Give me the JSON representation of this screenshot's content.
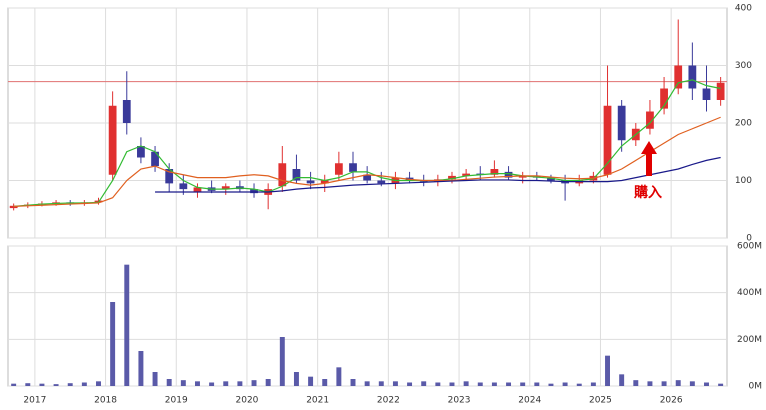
{
  "chart_data": [
    {
      "type": "candlestick",
      "x": [
        2016.7,
        2016.9,
        2017.1,
        2017.3,
        2017.5,
        2017.7,
        2017.9,
        2018.1,
        2018.3,
        2018.5,
        2018.7,
        2018.9,
        2019.1,
        2019.3,
        2019.5,
        2019.7,
        2019.9,
        2020.1,
        2020.3,
        2020.5,
        2020.7,
        2020.9,
        2021.1,
        2021.3,
        2021.5,
        2021.7,
        2021.9,
        2022.1,
        2022.3,
        2022.5,
        2022.7,
        2022.9,
        2023.1,
        2023.3,
        2023.5,
        2023.7,
        2023.9,
        2024.1,
        2024.3,
        2024.5,
        2024.7,
        2024.9,
        2025.1,
        2025.3,
        2025.5,
        2025.7,
        2025.9,
        2026.1,
        2026.3,
        2026.5,
        2026.7
      ],
      "open": [
        52,
        56,
        58,
        60,
        62,
        60,
        62,
        110,
        240,
        160,
        150,
        120,
        95,
        80,
        88,
        85,
        90,
        85,
        75,
        90,
        120,
        100,
        95,
        110,
        130,
        110,
        100,
        95,
        105,
        100,
        98,
        102,
        108,
        112,
        110,
        115,
        105,
        108,
        105,
        100,
        95,
        100,
        110,
        230,
        170,
        190,
        225,
        260,
        300,
        260,
        240
      ],
      "high": [
        60,
        62,
        64,
        66,
        66,
        66,
        70,
        255,
        290,
        175,
        160,
        130,
        110,
        95,
        100,
        95,
        100,
        95,
        95,
        160,
        145,
        115,
        110,
        150,
        150,
        125,
        115,
        115,
        115,
        110,
        110,
        115,
        120,
        125,
        135,
        125,
        115,
        115,
        110,
        110,
        110,
        115,
        300,
        240,
        200,
        240,
        280,
        380,
        340,
        300,
        280
      ],
      "low": [
        48,
        52,
        55,
        56,
        56,
        56,
        58,
        100,
        180,
        130,
        115,
        80,
        75,
        70,
        78,
        75,
        80,
        70,
        50,
        80,
        95,
        85,
        80,
        100,
        100,
        95,
        90,
        85,
        95,
        90,
        90,
        95,
        100,
        100,
        105,
        100,
        95,
        100,
        95,
        65,
        90,
        95,
        105,
        150,
        160,
        180,
        215,
        250,
        240,
        220,
        230
      ],
      "close": [
        56,
        58,
        60,
        62,
        60,
        62,
        65,
        230,
        200,
        140,
        125,
        95,
        85,
        88,
        82,
        90,
        85,
        78,
        85,
        130,
        100,
        95,
        100,
        130,
        115,
        100,
        95,
        105,
        100,
        98,
        102,
        108,
        112,
        110,
        120,
        105,
        108,
        105,
        100,
        95,
        100,
        108,
        230,
        170,
        190,
        220,
        260,
        300,
        260,
        240,
        270
      ],
      "series": [
        {
          "color": "#33bb33",
          "values": [
            55,
            57,
            59,
            60,
            61,
            61,
            62,
            100,
            150,
            160,
            150,
            120,
            100,
            88,
            85,
            85,
            87,
            85,
            80,
            90,
            105,
            105,
            100,
            105,
            115,
            115,
            105,
            100,
            100,
            100,
            100,
            103,
            108,
            110,
            112,
            112,
            108,
            106,
            104,
            100,
            100,
            103,
            130,
            160,
            180,
            200,
            230,
            270,
            275,
            265,
            260
          ]
        },
        {
          "color": "#e06020",
          "values": [
            55,
            56,
            57,
            58,
            59,
            60,
            61,
            70,
            100,
            120,
            125,
            115,
            110,
            105,
            105,
            105,
            108,
            110,
            108,
            100,
            95,
            92,
            95,
            100,
            105,
            110,
            108,
            105,
            102,
            100,
            100,
            100,
            102,
            104,
            106,
            107,
            108,
            108,
            106,
            104,
            103,
            104,
            110,
            120,
            135,
            150,
            165,
            180,
            190,
            200,
            210
          ]
        },
        {
          "color": "#1a1a8a",
          "values": [
            null,
            null,
            null,
            null,
            null,
            null,
            null,
            null,
            null,
            null,
            80,
            80,
            80,
            80,
            80,
            80,
            80,
            80,
            80,
            82,
            85,
            87,
            88,
            90,
            92,
            93,
            94,
            95,
            96,
            97,
            98,
            99,
            100,
            101,
            101,
            101,
            100,
            100,
            99,
            98,
            98,
            98,
            98,
            100,
            105,
            110,
            115,
            120,
            128,
            135,
            140
          ]
        }
      ],
      "up_color": "#e03030",
      "down_color": "#3a3a9a",
      "reference_line": {
        "value": 272,
        "color": "#e07070"
      },
      "annotation": {
        "text": "購入",
        "color": "#e00000"
      },
      "xlim": [
        2016.62,
        2026.79
      ],
      "xticks": [
        2017,
        2018,
        2019,
        2020,
        2021,
        2022,
        2023,
        2024,
        2025,
        2026
      ],
      "ylim": [
        0,
        400
      ],
      "yticks": [
        0,
        100,
        200,
        300,
        400
      ],
      "grid": true
    },
    {
      "type": "bar",
      "values": [
        10,
        12,
        10,
        8,
        12,
        15,
        20,
        360,
        520,
        150,
        60,
        30,
        25,
        20,
        15,
        20,
        20,
        25,
        30,
        210,
        60,
        40,
        30,
        80,
        30,
        20,
        20,
        20,
        15,
        20,
        15,
        15,
        20,
        15,
        15,
        15,
        15,
        15,
        10,
        15,
        10,
        15,
        130,
        50,
        25,
        20,
        20,
        25,
        20,
        15,
        10
      ],
      "color": "#5a5aa8",
      "ylim": [
        0,
        600
      ],
      "yticks": [
        {
          "value": 0,
          "label": "0M"
        },
        {
          "value": 200,
          "label": "200M"
        },
        {
          "value": 400,
          "label": "400M"
        },
        {
          "value": 600,
          "label": "600M"
        }
      ],
      "grid": true
    }
  ]
}
